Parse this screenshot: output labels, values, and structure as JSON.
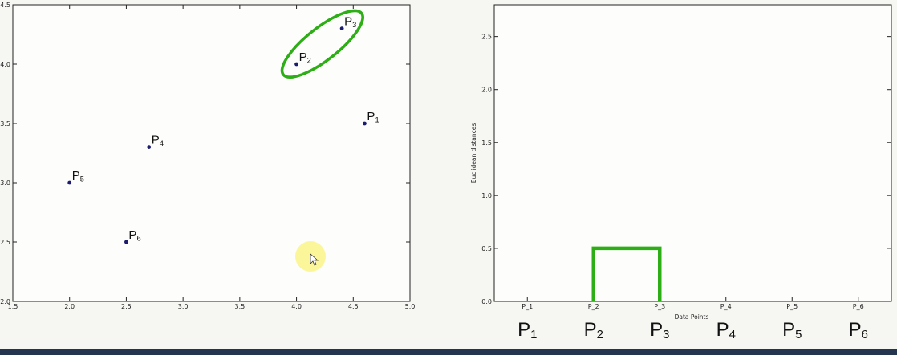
{
  "colors": {
    "point": "#1c1c6e",
    "highlight": "#2eae16",
    "cursor_halo": "#fbf48a",
    "axis": "#222222"
  },
  "chart_data": [
    {
      "type": "scatter",
      "title": "",
      "xlabel": "",
      "ylabel": "",
      "xlim": [
        1.5,
        5.0
      ],
      "ylim": [
        2.0,
        4.5
      ],
      "xticks": [
        "1.5",
        "2.0",
        "2.5",
        "3.0",
        "3.5",
        "4.0",
        "4.5",
        "5.0"
      ],
      "yticks": [
        "2.0",
        "2.5",
        "3.0",
        "3.5",
        "4.0",
        "4.5"
      ],
      "points": [
        {
          "name": "P",
          "sub": "1",
          "x": 4.6,
          "y": 3.5
        },
        {
          "name": "P",
          "sub": "2",
          "x": 4.0,
          "y": 4.0
        },
        {
          "name": "P",
          "sub": "3",
          "x": 4.4,
          "y": 4.3
        },
        {
          "name": "P",
          "sub": "4",
          "x": 2.7,
          "y": 3.3
        },
        {
          "name": "P",
          "sub": "5",
          "x": 2.0,
          "y": 3.0
        },
        {
          "name": "P",
          "sub": "6",
          "x": 2.5,
          "y": 2.5
        }
      ],
      "highlighted_cluster": [
        "P2",
        "P3"
      ]
    },
    {
      "type": "dendrogram",
      "title": "",
      "xlabel": "Data Points",
      "ylabel": "Euclidean distances",
      "ylim": [
        0.0,
        2.8
      ],
      "yticks": [
        "0.0",
        "0.5",
        "1.0",
        "1.5",
        "2.0",
        "2.5"
      ],
      "categories": [
        "P_1",
        "P_2",
        "P_3",
        "P_4",
        "P_5",
        "P_6"
      ],
      "big_labels": [
        {
          "name": "P",
          "sub": "1"
        },
        {
          "name": "P",
          "sub": "2"
        },
        {
          "name": "P",
          "sub": "3"
        },
        {
          "name": "P",
          "sub": "4"
        },
        {
          "name": "P",
          "sub": "5"
        },
        {
          "name": "P",
          "sub": "6"
        }
      ],
      "merges": [
        {
          "left": "P_2",
          "right": "P_3",
          "height": 0.5
        }
      ]
    }
  ]
}
